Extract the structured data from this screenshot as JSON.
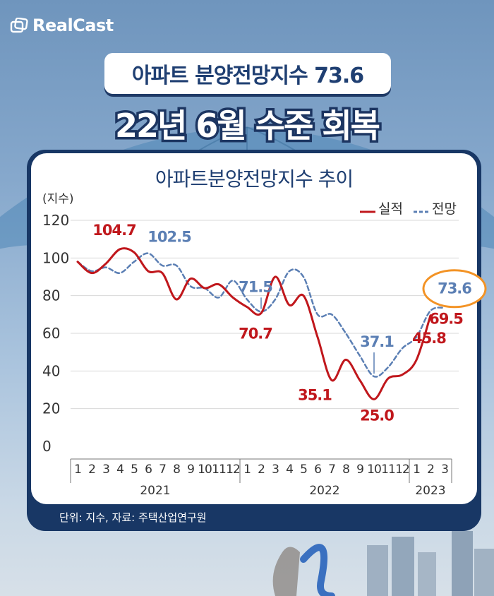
{
  "brand": {
    "name": "RealCast"
  },
  "headline_pill": "아파트 분양전망지수 73.6",
  "headline": "22년 6월 수준 회복",
  "source": "단위: 지수, 자료: 주택산업연구원",
  "chart_data": {
    "type": "line",
    "title": "아파트분양전망지수 추이",
    "ylabel": "(지수)",
    "ylim": [
      0,
      120
    ],
    "yticks": [
      0,
      20,
      40,
      60,
      80,
      100,
      120
    ],
    "grid": true,
    "legend_position": "top-right",
    "month_labels": [
      "1",
      "2",
      "3",
      "4",
      "5",
      "6",
      "7",
      "8",
      "9",
      "10",
      "11",
      "12",
      "1",
      "2",
      "3",
      "4",
      "5",
      "6",
      "7",
      "8",
      "9",
      "10",
      "11",
      "12",
      "1",
      "2",
      "3"
    ],
    "year_labels": [
      {
        "label": "2021",
        "start": 1,
        "end": 12
      },
      {
        "label": "2022",
        "start": 13,
        "end": 24
      },
      {
        "label": "2023",
        "start": 25,
        "end": 27
      }
    ],
    "series": [
      {
        "name": "실적",
        "color": "#c0171c",
        "style": "solid",
        "values": [
          98,
          92,
          97,
          104.7,
          103,
          93,
          92,
          78,
          89,
          84,
          86,
          79,
          74,
          70.7,
          90,
          75,
          80,
          58,
          35.1,
          46,
          35,
          25.0,
          36,
          38,
          45.8,
          69.5
        ]
      },
      {
        "name": "전망",
        "color": "#5b7fb4",
        "style": "dashed",
        "values": [
          98,
          93,
          95,
          92,
          98,
          102.5,
          96,
          96,
          85,
          84,
          79,
          88,
          78,
          71.5,
          78,
          93,
          90,
          70,
          70,
          60,
          48,
          37.1,
          42,
          52,
          58,
          72,
          73.6
        ]
      }
    ],
    "annotations": [
      {
        "series": 0,
        "index": 3,
        "label": "104.7"
      },
      {
        "series": 1,
        "index": 5,
        "label": "102.5"
      },
      {
        "series": 1,
        "index": 13,
        "label": "71.5"
      },
      {
        "series": 0,
        "index": 13,
        "label": "70.7"
      },
      {
        "series": 0,
        "index": 18,
        "label": "35.1"
      },
      {
        "series": 1,
        "index": 21,
        "label": "37.1"
      },
      {
        "series": 0,
        "index": 21,
        "label": "25.0"
      },
      {
        "series": 1,
        "index": 26,
        "label": "73.6",
        "highlight": true
      },
      {
        "series": 0,
        "index": 25,
        "label": "69.5"
      },
      {
        "series": 0,
        "index": 24,
        "label": "45.8"
      }
    ]
  },
  "colors": {
    "navy": "#183765",
    "title": "#1f3f72",
    "highlight": "#f39325"
  }
}
